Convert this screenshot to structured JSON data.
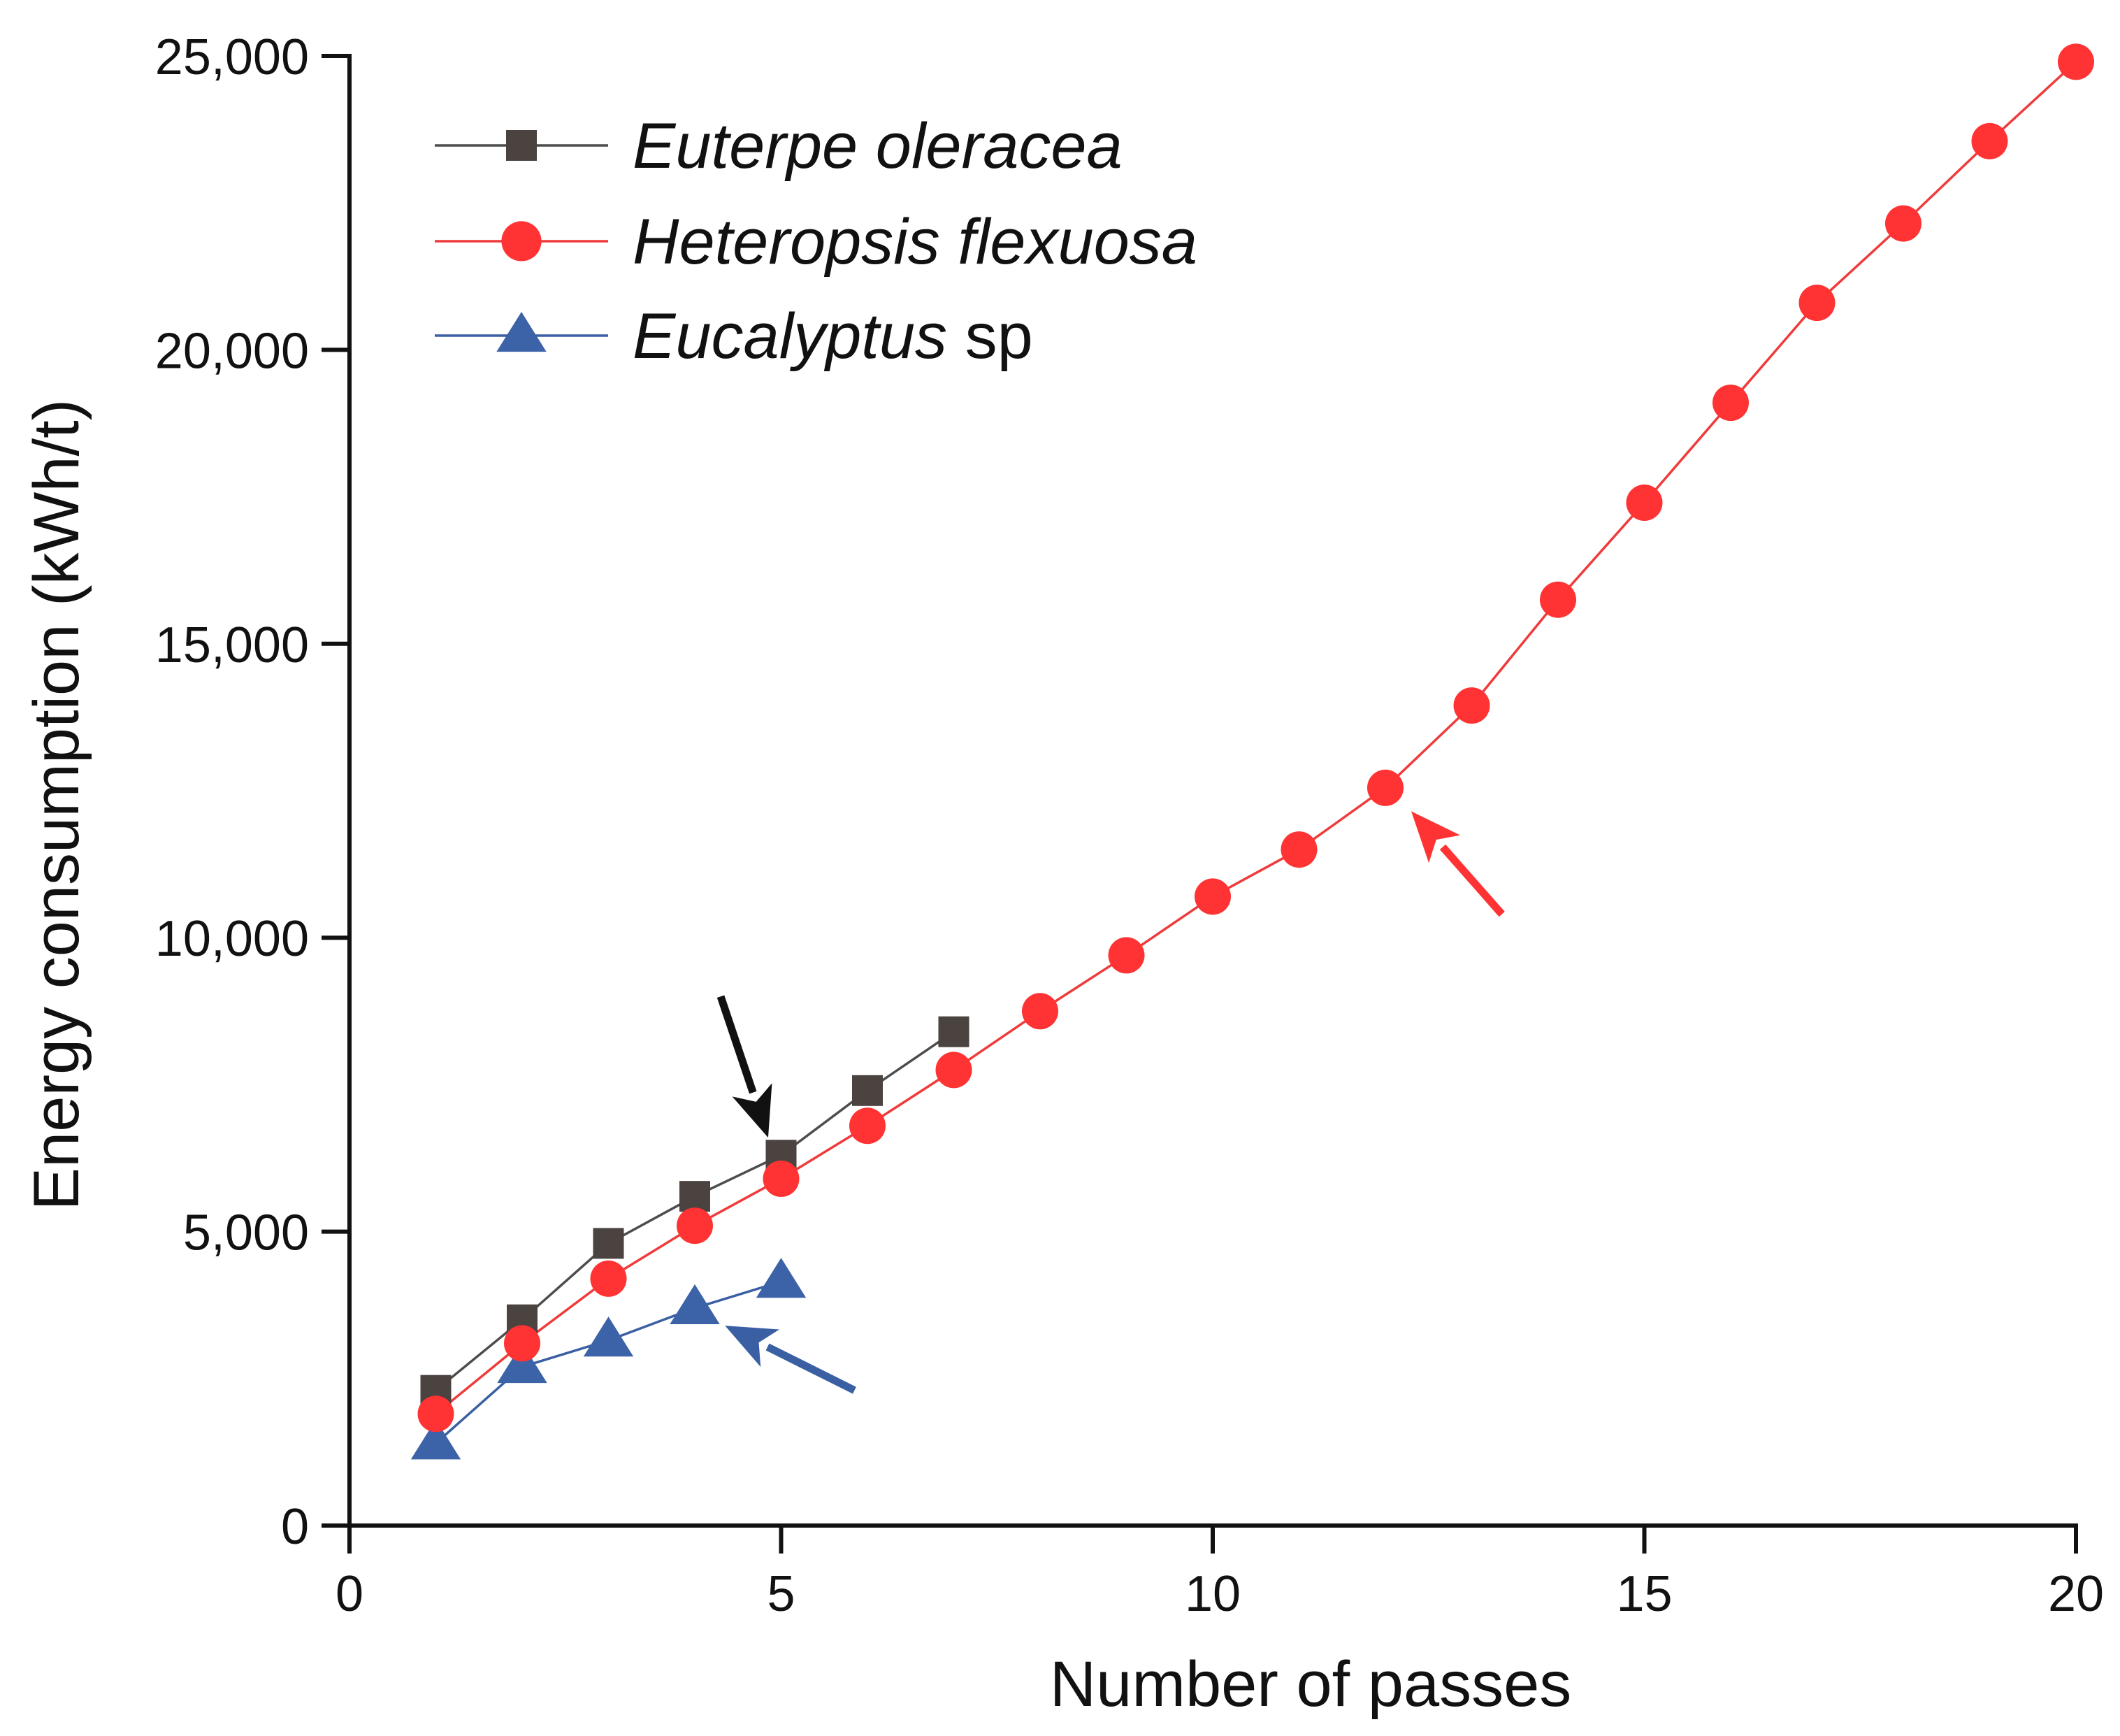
{
  "chart_data": {
    "type": "line",
    "title": "",
    "xlabel": "Number of passes",
    "ylabel": "Energy consumption (kWh/t)",
    "xlim": [
      0,
      20
    ],
    "ylim": [
      0,
      25000
    ],
    "xticks": [
      0,
      5,
      10,
      15,
      20
    ],
    "yticks": [
      0,
      5000,
      10000,
      15000,
      20000,
      25000
    ],
    "xtick_labels": [
      "0",
      "5",
      "10",
      "15",
      "20"
    ],
    "ytick_labels": [
      "0",
      "5,000",
      "10,000",
      "15,000",
      "20,000",
      "25,000"
    ],
    "grid": false,
    "legend_position": "top-left",
    "series": [
      {
        "name_italic": "Euterpe oleracea",
        "name_suffix": "",
        "marker": "square",
        "line_color": "#4d4d4d",
        "marker_color": "#4a4340",
        "x": [
          1,
          2,
          3,
          4,
          5,
          6,
          7
        ],
        "y": [
          2300,
          3500,
          4800,
          5600,
          6300,
          7400,
          8400
        ]
      },
      {
        "name_italic": "Heteropsis flexuosa",
        "name_suffix": "",
        "marker": "circle",
        "line_color": "#ef3b3b",
        "marker_color": "#ff3333",
        "x": [
          1,
          2,
          3,
          4,
          5,
          6,
          7,
          8,
          9,
          10,
          11,
          12,
          13,
          14,
          15,
          16,
          17,
          18,
          19,
          20
        ],
        "y": [
          1900,
          3100,
          4200,
          5100,
          5900,
          6800,
          7750,
          8750,
          9700,
          10700,
          11500,
          12550,
          13950,
          15750,
          17400,
          19100,
          20800,
          22150,
          23550,
          24900
        ]
      },
      {
        "name_italic": "Eucalyptus",
        "name_suffix": " sp",
        "marker": "triangle",
        "line_color": "#3a5fa3",
        "marker_color": "#3c63a8",
        "x": [
          1,
          2,
          3,
          4,
          5
        ],
        "y": [
          1400,
          2700,
          3150,
          3700,
          4150
        ]
      }
    ],
    "annotations": [
      {
        "type": "arrow",
        "color": "#111111",
        "from": [
          4.3,
          9000
        ],
        "to": [
          4.85,
          6600
        ]
      },
      {
        "type": "arrow",
        "color": "#ff3333",
        "from": [
          13.35,
          10400
        ],
        "to": [
          12.3,
          12150
        ]
      },
      {
        "type": "arrow",
        "color": "#3a5fa3",
        "from": [
          5.85,
          2300
        ],
        "to": [
          4.35,
          3400
        ]
      }
    ]
  }
}
